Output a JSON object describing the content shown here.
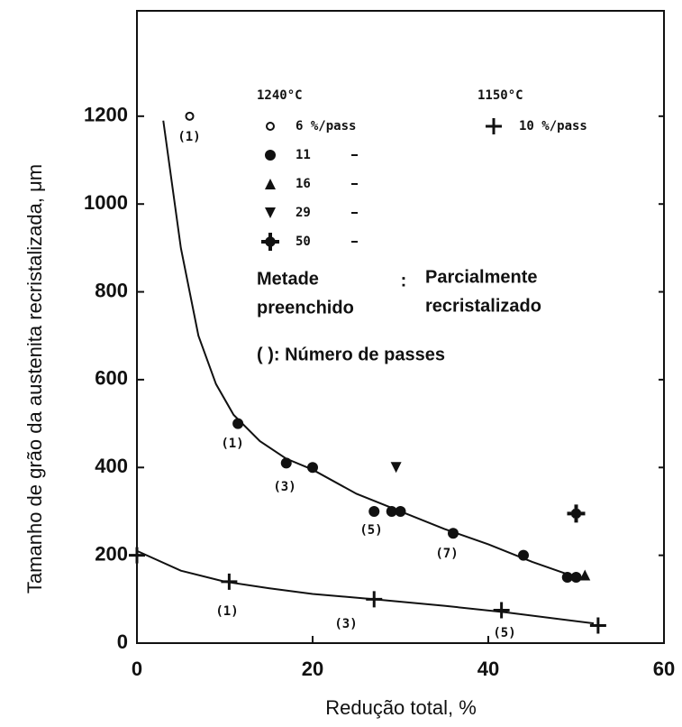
{
  "chart_data": {
    "type": "scatter",
    "xlabel": "Redução total, %",
    "ylabel": "Tamanho de grão da austenita recristalizada, μm",
    "xlim": [
      0,
      60
    ],
    "xticks": [
      0,
      20,
      40,
      60
    ],
    "ylim": [
      0,
      1440
    ],
    "yticks": [
      0,
      200,
      400,
      600,
      800,
      1000,
      1200
    ],
    "legend_groups": [
      "1240°C",
      "1150°C"
    ],
    "series": [
      {
        "name": "6 %/pass",
        "marker": "open-circle",
        "color": "#111",
        "x": [
          6
        ],
        "values": [
          1200
        ]
      },
      {
        "name": "11",
        "marker": "circle",
        "color": "#111",
        "x": [
          11.5,
          17,
          20,
          27,
          29,
          30,
          36,
          44,
          49,
          50
        ],
        "values": [
          500,
          410,
          400,
          300,
          300,
          300,
          250,
          200,
          150,
          150
        ]
      },
      {
        "name": "16",
        "marker": "triangle",
        "color": "#111",
        "x": [
          51
        ],
        "values": [
          155
        ]
      },
      {
        "name": "29",
        "marker": "triangle-down",
        "color": "#111",
        "x": [
          29.5
        ],
        "values": [
          400
        ]
      },
      {
        "name": "50",
        "marker": "cross",
        "color": "#111",
        "x": [
          50
        ],
        "values": [
          295
        ]
      },
      {
        "name": "10 %/pass",
        "marker": "open-cross",
        "color": "#111",
        "x": [
          0,
          10.5,
          27,
          41.5,
          52.5
        ],
        "values": [
          200,
          140,
          100,
          75,
          40
        ]
      }
    ],
    "curves": [
      {
        "color": "#111",
        "x": [
          3,
          5,
          7,
          9,
          11,
          14,
          17,
          20,
          25,
          30,
          35,
          40,
          45,
          50
        ],
        "values": [
          1190,
          900,
          700,
          590,
          520,
          460,
          420,
          395,
          340,
          300,
          260,
          225,
          185,
          150
        ]
      },
      {
        "color": "#111",
        "x": [
          0,
          5,
          10,
          15,
          20,
          27,
          35,
          42,
          52
        ],
        "values": [
          210,
          165,
          140,
          125,
          112,
          100,
          85,
          70,
          45
        ]
      }
    ],
    "annotations": [
      "(1)",
      "(1)",
      "(3)",
      "(5)",
      "(7)",
      "(1)",
      "(3)",
      "(5)"
    ],
    "notes": [
      "Metade",
      "preenchido",
      ":",
      "Parcialmente",
      "recristalizado",
      "( ):  Número de passes"
    ]
  }
}
